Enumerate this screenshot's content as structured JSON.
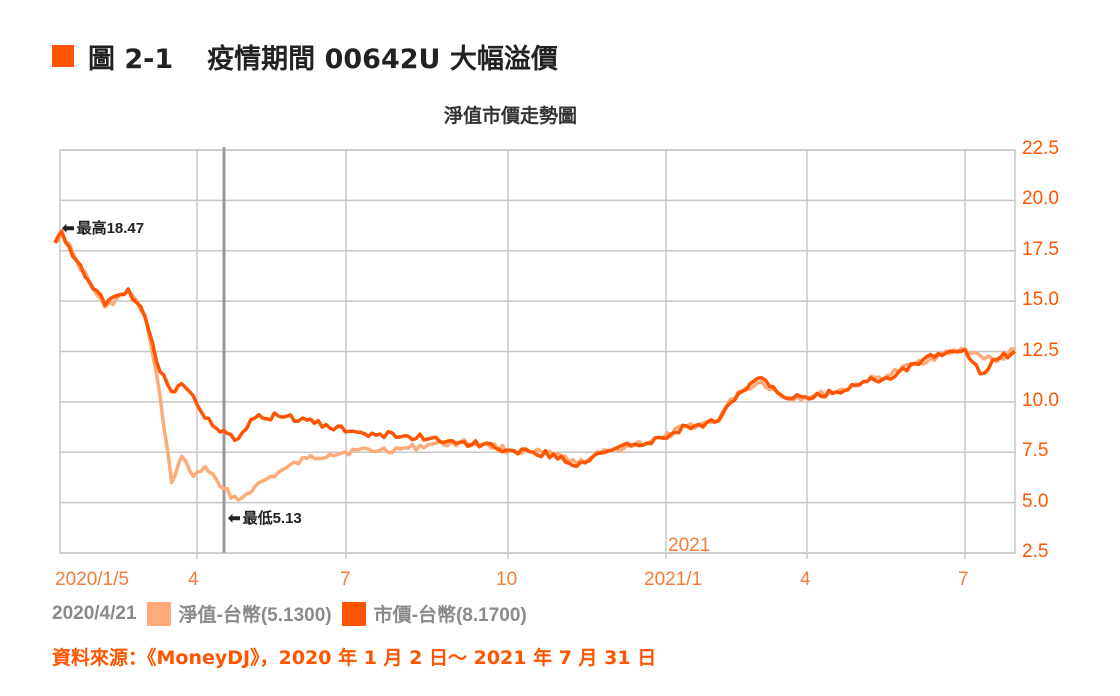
{
  "figure": {
    "number": "圖 2-1",
    "title": "疫情期間 00642U 大幅溢價",
    "accent_color": "#ff5500"
  },
  "chart_title": "淨值市價走勢圖",
  "annotations": {
    "high": {
      "label": "最高18.47",
      "icon": "arrow-left-icon"
    },
    "low": {
      "label": "最低5.13",
      "icon": "arrow-left-icon"
    }
  },
  "y_ticks": [
    "22.5",
    "20.0",
    "17.5",
    "15.0",
    "12.5",
    "10.0",
    "7.5",
    "5.0",
    "2.5"
  ],
  "x_ticks": [
    "2020/1/5",
    "4",
    "7",
    "10",
    "2021/1",
    "4",
    "7"
  ],
  "year_marker": "2021",
  "legend": {
    "date": "2020/4/21",
    "items": [
      {
        "label": "淨值-台幣(5.1300)",
        "color": "#fdab7a"
      },
      {
        "label": "市價-台幣(8.1700)",
        "color": "#ff5500"
      }
    ]
  },
  "source": "資料來源：《MoneyDJ》，2020 年 1 月 2 日～ 2021 年 7 月 31 日",
  "chart_data": {
    "type": "line",
    "title": "淨值市價走勢圖",
    "xlabel": "",
    "ylabel": "",
    "ylim": [
      2.5,
      22.5
    ],
    "y_axis_position": "right",
    "grid": true,
    "legend_position": "bottom",
    "x": [
      "2020-01-02",
      "2020-01-06",
      "2020-01-15",
      "2020-02-01",
      "2020-02-15",
      "2020-02-25",
      "2020-03-05",
      "2020-03-12",
      "2020-03-18",
      "2020-03-25",
      "2020-04-01",
      "2020-04-10",
      "2020-04-21",
      "2020-05-01",
      "2020-05-15",
      "2020-06-01",
      "2020-06-15",
      "2020-07-01",
      "2020-07-15",
      "2020-08-01",
      "2020-08-15",
      "2020-09-01",
      "2020-09-15",
      "2020-10-01",
      "2020-10-15",
      "2020-11-01",
      "2020-11-10",
      "2020-11-20",
      "2020-12-01",
      "2020-12-15",
      "2021-01-01",
      "2021-01-15",
      "2021-02-01",
      "2021-02-15",
      "2021-03-01",
      "2021-03-15",
      "2021-04-01",
      "2021-04-15",
      "2021-05-01",
      "2021-05-15",
      "2021-06-01",
      "2021-06-15",
      "2021-07-01",
      "2021-07-10",
      "2021-07-20",
      "2021-07-31"
    ],
    "series": [
      {
        "name": "淨值-台幣",
        "color": "#fdab7a",
        "values": [
          17.9,
          18.4,
          17.0,
          14.7,
          15.5,
          14.3,
          10.3,
          6.0,
          7.3,
          6.3,
          6.8,
          5.8,
          5.13,
          5.8,
          6.5,
          7.2,
          7.4,
          7.6,
          7.6,
          7.7,
          7.9,
          8.0,
          7.9,
          7.6,
          7.5,
          7.3,
          6.9,
          7.3,
          7.6,
          7.9,
          8.2,
          8.8,
          9.0,
          10.5,
          11.0,
          10.2,
          10.3,
          10.5,
          11.0,
          11.3,
          11.9,
          12.3,
          12.6,
          12.3,
          12.0,
          12.6
        ]
      },
      {
        "name": "市價-台幣",
        "color": "#ff5500",
        "values": [
          17.9,
          18.47,
          17.0,
          14.8,
          15.6,
          14.2,
          11.5,
          10.5,
          10.9,
          10.3,
          9.2,
          8.5,
          8.17,
          9.2,
          9.3,
          9.1,
          8.7,
          8.5,
          8.4,
          8.3,
          8.2,
          8.0,
          7.9,
          7.6,
          7.5,
          7.3,
          6.8,
          7.3,
          7.6,
          7.9,
          8.2,
          8.8,
          9.0,
          10.4,
          11.2,
          10.2,
          10.2,
          10.5,
          11.0,
          11.2,
          11.9,
          12.4,
          12.6,
          11.4,
          12.1,
          12.5
        ]
      }
    ],
    "x_tick_labels": [
      "2020/1/5",
      "4",
      "7",
      "10",
      "2021/1",
      "4",
      "7"
    ],
    "annotations": [
      {
        "text": "最高18.47",
        "value": 18.47
      },
      {
        "text": "最低5.13",
        "value": 5.13
      }
    ],
    "marker_date": "2020/4/21"
  }
}
